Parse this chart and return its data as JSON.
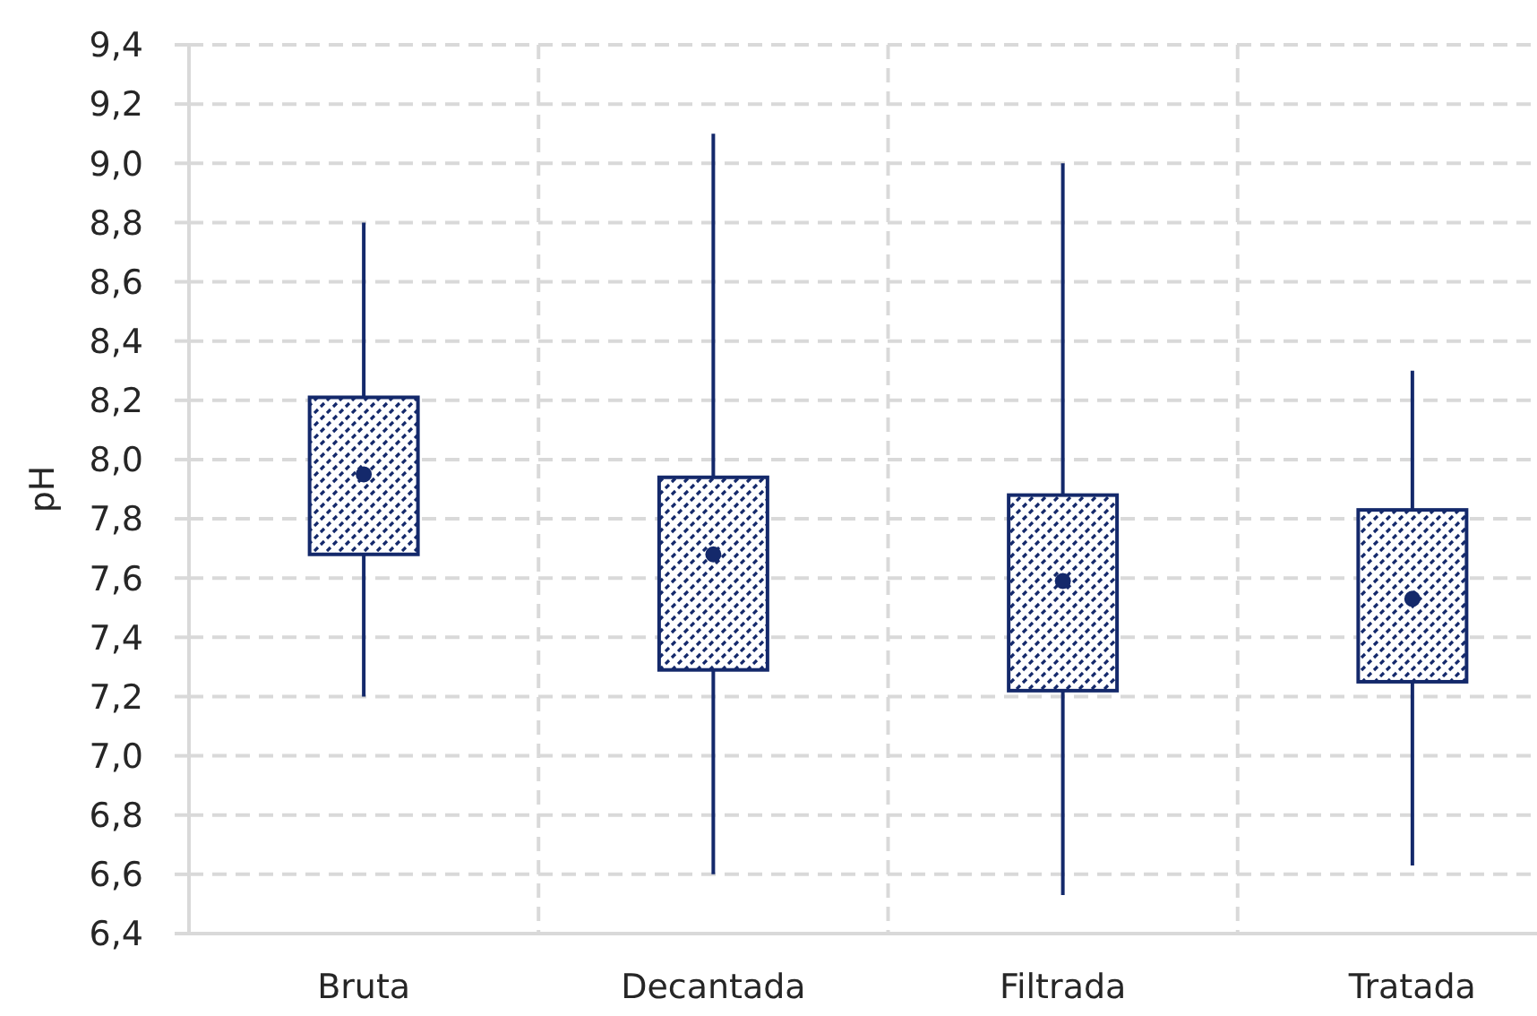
{
  "chart_data": {
    "type": "box",
    "ylabel": "pH",
    "categories": [
      "Bruta",
      "Decantada",
      "Filtrada",
      "Tratada"
    ],
    "color": "#14296b",
    "boxes": [
      {
        "low": 7.2,
        "q1": 7.68,
        "median": null,
        "q3": 8.21,
        "high": 8.8,
        "mean": 7.95
      },
      {
        "low": 6.6,
        "q1": 7.29,
        "median": null,
        "q3": 7.94,
        "high": 9.1,
        "mean": 7.68
      },
      {
        "low": 6.53,
        "q1": 7.22,
        "median": null,
        "q3": 7.88,
        "high": 9.0,
        "mean": 7.59
      },
      {
        "low": 6.63,
        "q1": 7.25,
        "median": null,
        "q3": 7.83,
        "high": 8.3,
        "mean": 7.53
      }
    ],
    "ylim": [
      6.4,
      9.4
    ],
    "yticks": [
      {
        "value": 6.4,
        "label": "6,4"
      },
      {
        "value": 6.6,
        "label": "6,6"
      },
      {
        "value": 6.8,
        "label": "6,8"
      },
      {
        "value": 7.0,
        "label": "7,0"
      },
      {
        "value": 7.2,
        "label": "7,2"
      },
      {
        "value": 7.4,
        "label": "7,4"
      },
      {
        "value": 7.6,
        "label": "7,6"
      },
      {
        "value": 7.8,
        "label": "7,8"
      },
      {
        "value": 8.0,
        "label": "8,0"
      },
      {
        "value": 8.2,
        "label": "8,2"
      },
      {
        "value": 8.4,
        "label": "8,4"
      },
      {
        "value": 8.6,
        "label": "8,6"
      },
      {
        "value": 8.8,
        "label": "8,8"
      },
      {
        "value": 9.0,
        "label": "9,0"
      },
      {
        "value": 9.2,
        "label": "9,2"
      },
      {
        "value": 9.4,
        "label": "9,4"
      }
    ],
    "grid": true
  }
}
